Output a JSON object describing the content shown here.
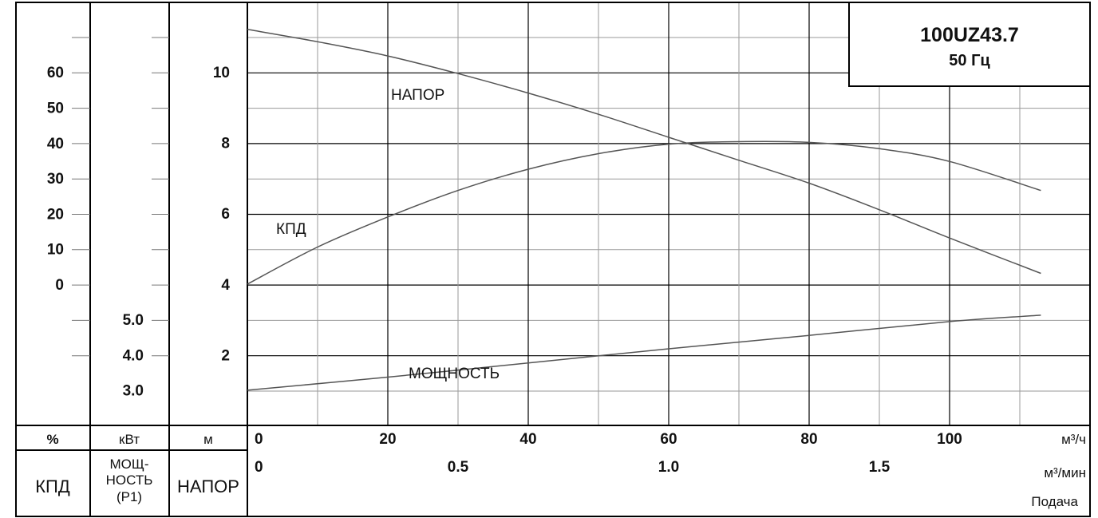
{
  "chart_data": {
    "type": "line",
    "title": "100UZ43.7",
    "subtitle": "50 Гц",
    "xlabel": "Подача",
    "x_unit_primary": "м³/ч",
    "x_unit_secondary": "м³/мин",
    "x_ticks_primary": [
      "0",
      "20",
      "40",
      "60",
      "80",
      "100"
    ],
    "x_ticks_secondary": [
      "0",
      "0.5",
      "1.0",
      "1.5"
    ],
    "xlim": [
      0,
      120
    ],
    "grid": true,
    "axes": {
      "efficiency": {
        "label": "КПД",
        "unit": "%",
        "ticks": [
          "60",
          "50",
          "40",
          "30",
          "20",
          "10",
          "0"
        ]
      },
      "power": {
        "label_line1": "МОЩ-",
        "label_line2": "НОСТЬ",
        "label_line3": "(P1)",
        "unit": "кВт",
        "ticks": [
          "5.0",
          "4.0",
          "3.0"
        ]
      },
      "head": {
        "label": "НАПОР",
        "unit": "м",
        "ticks": [
          "10",
          "8",
          "6",
          "4",
          "2"
        ],
        "ylim": [
          0,
          12
        ]
      }
    },
    "series": [
      {
        "name": "НАПОР",
        "unit": "м",
        "x": [
          0,
          10,
          20,
          30,
          40,
          50,
          60,
          70,
          80,
          90,
          100,
          113
        ],
        "y": [
          11.2,
          10.85,
          10.45,
          9.95,
          9.4,
          8.8,
          8.15,
          7.5,
          6.85,
          6.1,
          5.3,
          4.3
        ]
      },
      {
        "name": "КПД",
        "unit": "%",
        "x": [
          0,
          10,
          20,
          30,
          40,
          50,
          60,
          70,
          80,
          90,
          100,
          113
        ],
        "y": [
          0,
          10.5,
          19,
          26.5,
          32.5,
          36.9,
          39.6,
          40.3,
          40.1,
          38.3,
          34.7,
          26.5
        ]
      },
      {
        "name": "МОЩНОСТЬ",
        "unit": "кВт",
        "x": [
          0,
          20,
          40,
          60,
          80,
          100,
          113
        ],
        "y": [
          2.5,
          2.87,
          3.27,
          3.67,
          4.05,
          4.44,
          4.62
        ]
      }
    ]
  },
  "colors": {
    "frame": "#000000",
    "curve": "#555555",
    "grid_minor": "#9a9a9a"
  }
}
